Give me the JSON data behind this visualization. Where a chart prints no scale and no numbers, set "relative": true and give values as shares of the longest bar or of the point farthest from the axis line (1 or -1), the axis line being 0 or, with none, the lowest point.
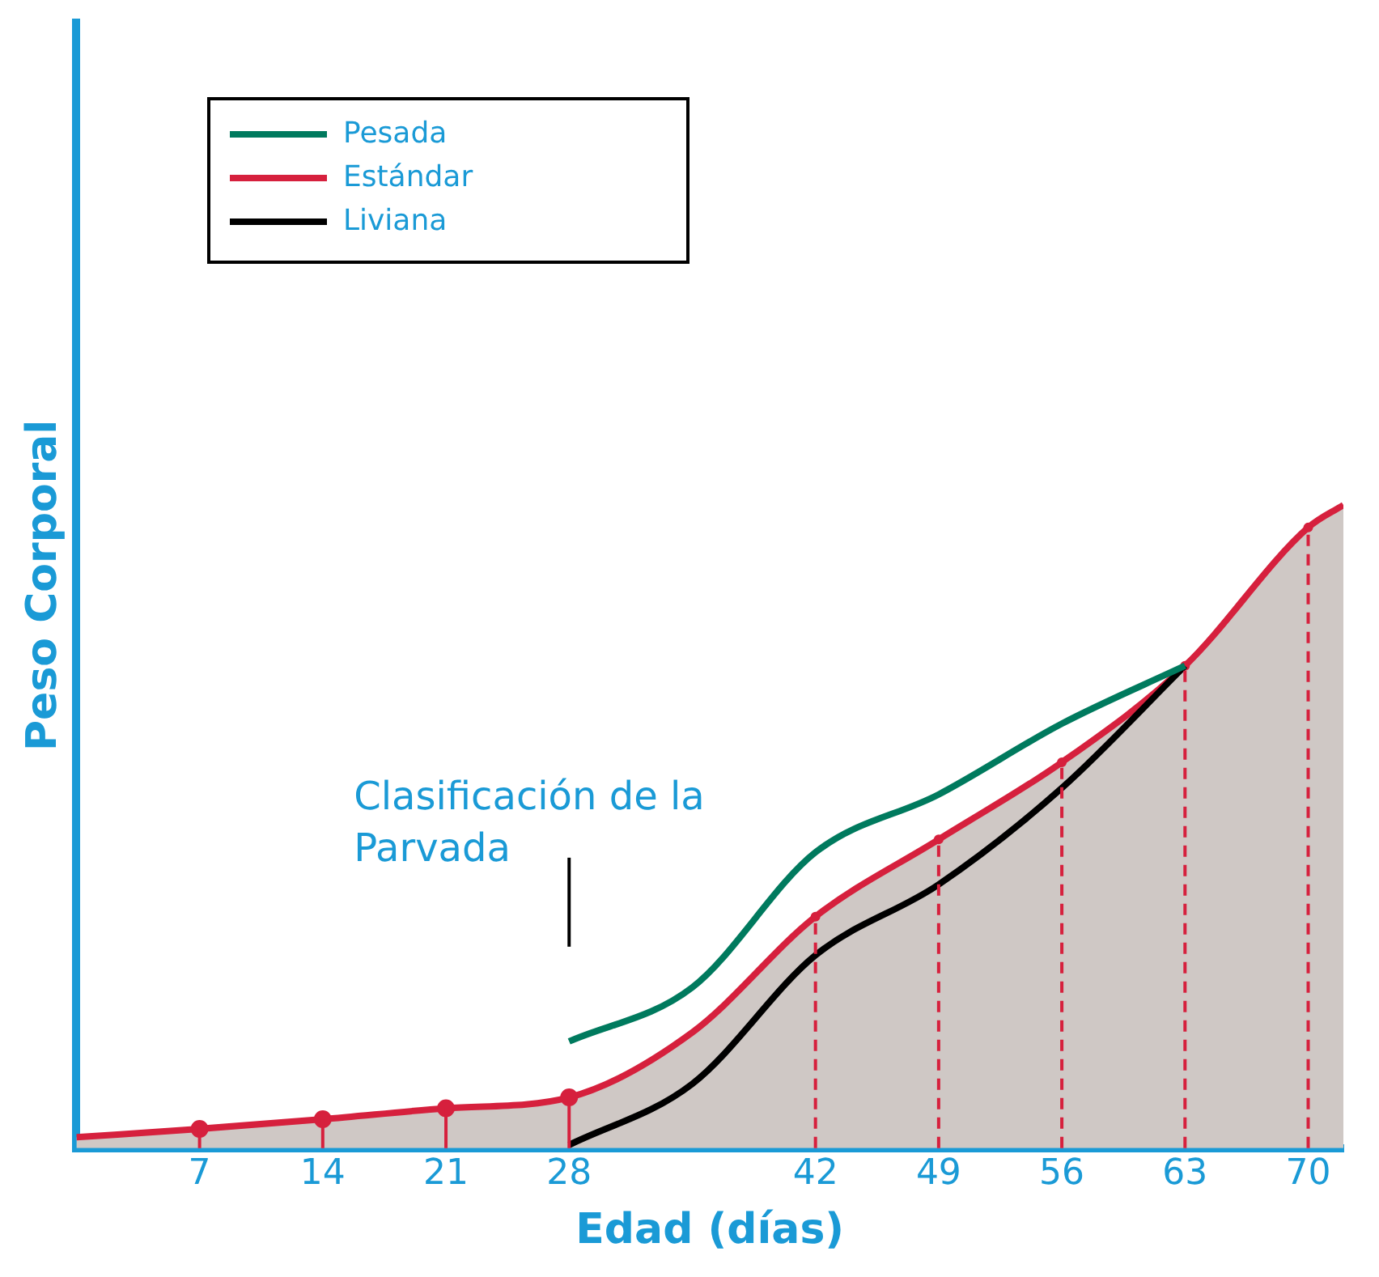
{
  "chart_data": {
    "type": "line",
    "relative": true,
    "xlabel": "Edad (días)",
    "ylabel": "Peso Corporal",
    "x": [
      0,
      7,
      14,
      21,
      28,
      35,
      42,
      49,
      56,
      63,
      70,
      72
    ],
    "xlim": [
      0,
      72
    ],
    "xticks": [
      7,
      14,
      21,
      28,
      42,
      49,
      56,
      63,
      70
    ],
    "series": [
      {
        "name": "Pesada",
        "color": "#007a5e",
        "marker": "none",
        "x": [
          28,
          35,
          42,
          49,
          56,
          63
        ],
        "values": [
          0.166,
          0.25,
          0.46,
          0.55,
          0.66,
          0.75
        ]
      },
      {
        "name": "Estándar",
        "type": "area",
        "color": "#d6203d",
        "marker": "none",
        "values": [
          0.017,
          0.03,
          0.045,
          0.062,
          0.079,
          0.18,
          0.36,
          0.48,
          0.6,
          0.75,
          0.965,
          1.0
        ]
      },
      {
        "name": "Liviana",
        "color": "#000000",
        "marker": "none",
        "x": [
          28,
          35,
          42,
          49,
          56,
          63
        ],
        "values": [
          0.005,
          0.1,
          0.3,
          0.41,
          0.56,
          0.75
        ]
      },
      {
        "type": "lollipop",
        "color": "#d6203d",
        "marker": "circle",
        "line_style": "solid",
        "x": [
          7,
          14,
          21,
          28
        ],
        "values": [
          0.03,
          0.045,
          0.062,
          0.079
        ]
      },
      {
        "type": "lollipop",
        "color": "#d6203d",
        "marker": "circle",
        "line_style": "dashed",
        "x": [
          42,
          49,
          56,
          63,
          70
        ],
        "values": [
          0.36,
          0.48,
          0.6,
          0.75,
          0.965
        ]
      }
    ],
    "annotations": [
      "Clasificación de la Parvada"
    ],
    "legend": "top left",
    "line_style": "solid"
  }
}
